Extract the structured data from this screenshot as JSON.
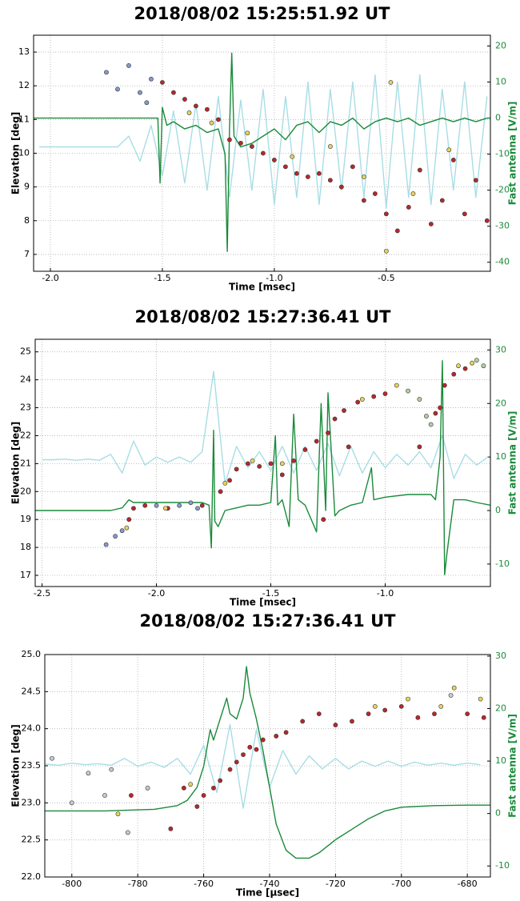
{
  "chart_data": [
    {
      "type": "combo",
      "title": "2018/08/02  15:25:51.92 UT",
      "x_label": "Time [msec]",
      "y_label": "Elevation [deg]",
      "y2_label": "Fast antenna [V/m]",
      "xlim": [
        -2.075,
        -0.035
      ],
      "ylim": [
        6.5,
        13.5
      ],
      "y2lim": [
        -42.5,
        23
      ],
      "grid": true,
      "xticks": [
        {
          "value": -2,
          "label": "-2.0"
        },
        -1.5,
        {
          "value": -1,
          "label": "-1.0"
        },
        -0.5
      ],
      "yticks": [
        7,
        8,
        9,
        10,
        11,
        12,
        13
      ],
      "y2ticks": [
        -40,
        -30,
        -20,
        -10,
        0,
        10,
        20
      ],
      "series": [
        {
          "kind": "line",
          "axis": "y2",
          "color": "#a8dde6",
          "x": [
            -2.05,
            -2.0,
            -1.95,
            -1.9,
            -1.85,
            -1.8,
            -1.75,
            -1.7,
            -1.65,
            -1.6,
            -1.55,
            -1.5,
            -1.45,
            -1.4,
            -1.35,
            -1.3,
            -1.25,
            -1.2,
            -1.15,
            -1.1,
            -1.05,
            -1.0,
            -0.95,
            -0.9,
            -0.85,
            -0.8,
            -0.75,
            -0.7,
            -0.65,
            -0.6,
            -0.55,
            -0.5,
            -0.45,
            -0.4,
            -0.35,
            -0.3,
            -0.25,
            -0.2,
            -0.15,
            -0.1,
            -0.05
          ],
          "values": [
            -8,
            -8,
            -8,
            -8,
            -8,
            -8,
            -8,
            -8,
            -5,
            -12,
            -2,
            -16,
            2,
            -18,
            4,
            -20,
            6,
            -22,
            5,
            -20,
            8,
            -24,
            6,
            -22,
            10,
            -24,
            8,
            -20,
            10,
            -22,
            12,
            -25,
            10,
            -22,
            12,
            -24,
            8,
            -20,
            10,
            -22,
            6
          ]
        },
        {
          "kind": "line",
          "axis": "y2",
          "color": "#1a8a3a",
          "x": [
            -2.075,
            -1.6,
            -1.52,
            -1.51,
            -1.5,
            -1.48,
            -1.45,
            -1.4,
            -1.35,
            -1.3,
            -1.25,
            -1.22,
            -1.21,
            -1.2,
            -1.19,
            -1.18,
            -1.17,
            -1.15,
            -1.1,
            -1.05,
            -1.0,
            -0.95,
            -0.9,
            -0.85,
            -0.8,
            -0.75,
            -0.7,
            -0.65,
            -0.6,
            -0.55,
            -0.5,
            -0.45,
            -0.4,
            -0.35,
            -0.3,
            -0.25,
            -0.2,
            -0.15,
            -0.1,
            -0.05,
            -0.035
          ],
          "values": [
            0,
            0,
            0,
            -18,
            3,
            -2,
            -1,
            -3,
            -2,
            -4,
            -3,
            -10,
            -37,
            -3,
            18,
            -5,
            -6,
            -8,
            -7,
            -5,
            -3,
            -6,
            -2,
            -1,
            -4,
            -1,
            -2,
            0,
            -3,
            -1,
            0,
            -1,
            0,
            -2,
            -1,
            0,
            -1,
            0,
            -1,
            0,
            0
          ]
        },
        {
          "kind": "scatter",
          "axis": "y",
          "color": "#8899cc",
          "x": [
            -1.75,
            -1.7,
            -1.65,
            -1.6,
            -1.57,
            -1.55
          ],
          "values": [
            12.4,
            11.9,
            12.6,
            11.8,
            11.5,
            12.2
          ]
        },
        {
          "kind": "scatter",
          "axis": "y",
          "color": "#b8282a",
          "x": [
            -1.5,
            -1.45,
            -1.4,
            -1.35,
            -1.3,
            -1.25,
            -1.2,
            -1.15,
            -1.1,
            -1.05,
            -1.0,
            -0.95,
            -0.9,
            -0.85,
            -0.8,
            -0.75,
            -0.7,
            -0.65,
            -0.6,
            -0.55,
            -0.5,
            -0.45,
            -0.4,
            -0.35,
            -0.3,
            -0.25,
            -0.2,
            -0.15,
            -0.1,
            -0.05
          ],
          "values": [
            12.1,
            11.8,
            11.6,
            11.4,
            11.3,
            11.0,
            10.4,
            10.3,
            10.2,
            10.0,
            9.8,
            9.6,
            9.4,
            9.3,
            9.4,
            9.2,
            9.0,
            9.6,
            8.6,
            8.8,
            8.2,
            7.7,
            8.4,
            9.5,
            7.9,
            8.6,
            9.8,
            8.2,
            9.2,
            8.0
          ]
        },
        {
          "kind": "scatter",
          "axis": "y",
          "color": "#e8d45a",
          "x": [
            -1.38,
            -1.28,
            -1.12,
            -0.92,
            -0.75,
            -0.6,
            -0.48,
            -0.38,
            -0.22,
            -0.5
          ],
          "values": [
            11.2,
            10.9,
            10.6,
            9.9,
            10.2,
            9.3,
            12.1,
            8.8,
            10.1,
            7.1
          ]
        }
      ]
    },
    {
      "type": "combo",
      "title": "2018/08/02  15:27:36.41 UT",
      "x_label": "Time [msec]",
      "y_label": "Elevation [deg]",
      "y2_label": "Fast antenna [V/m]",
      "xlim": [
        -2.53,
        -0.54
      ],
      "ylim": [
        16.6,
        25.45
      ],
      "y2lim": [
        -14.2,
        32
      ],
      "grid": true,
      "xticks": [
        -2.5,
        {
          "value": -2,
          "label": "-2.0"
        },
        -1.5,
        {
          "value": -1,
          "label": "-1.0"
        }
      ],
      "yticks": [
        17,
        18,
        19,
        20,
        21,
        22,
        23,
        24,
        25
      ],
      "y2ticks": [
        -10,
        0,
        10,
        20,
        30
      ],
      "series": [
        {
          "kind": "line",
          "axis": "y2",
          "color": "#a8dde6",
          "x": [
            -2.5,
            -2.45,
            -2.4,
            -2.35,
            -2.3,
            -2.25,
            -2.2,
            -2.15,
            -2.1,
            -2.05,
            -2.0,
            -1.95,
            -1.9,
            -1.85,
            -1.8,
            -1.75,
            -1.7,
            -1.65,
            -1.6,
            -1.55,
            -1.5,
            -1.45,
            -1.4,
            -1.35,
            -1.3,
            -1.25,
            -1.2,
            -1.15,
            -1.1,
            -1.05,
            -1.0,
            -0.95,
            -0.9,
            -0.85,
            -0.8,
            -0.75,
            -0.7,
            -0.65,
            -0.6,
            -0.55
          ],
          "values": [
            9.5,
            9.5,
            9.6,
            9.4,
            9.6,
            9.4,
            10.5,
            7,
            13,
            8.5,
            10,
            9,
            10,
            9,
            11,
            26,
            5,
            12,
            8,
            11,
            7.5,
            12,
            7,
            12,
            7.5,
            12.5,
            6.5,
            12,
            7,
            11,
            8,
            10.5,
            8.5,
            11,
            8,
            14,
            6,
            10.5,
            8.5,
            10
          ]
        },
        {
          "kind": "line",
          "axis": "y2",
          "color": "#1a8a3a",
          "x": [
            -2.53,
            -2.2,
            -2.15,
            -2.12,
            -2.1,
            -2.0,
            -1.9,
            -1.8,
            -1.77,
            -1.76,
            -1.75,
            -1.745,
            -1.73,
            -1.7,
            -1.65,
            -1.6,
            -1.55,
            -1.5,
            -1.48,
            -1.47,
            -1.45,
            -1.42,
            -1.4,
            -1.38,
            -1.35,
            -1.32,
            -1.3,
            -1.28,
            -1.26,
            -1.25,
            -1.22,
            -1.2,
            -1.15,
            -1.1,
            -1.06,
            -1.05,
            -1.0,
            -0.9,
            -0.8,
            -0.78,
            -0.76,
            -0.75,
            -0.74,
            -0.73,
            -0.7,
            -0.65,
            -0.6,
            -0.54
          ],
          "values": [
            0,
            0,
            0.5,
            2,
            1.5,
            1.5,
            1.5,
            1.5,
            1,
            -7,
            15,
            -2,
            -3,
            0,
            0.5,
            1,
            1,
            1.5,
            14,
            1,
            2,
            -3,
            18,
            2,
            1,
            -2,
            -4,
            20,
            0,
            22,
            -1,
            0,
            1,
            1.5,
            8,
            2,
            2.5,
            3,
            3,
            2,
            10,
            28,
            -12,
            -8,
            2,
            2,
            1.5,
            1
          ]
        },
        {
          "kind": "scatter",
          "axis": "y",
          "color": "#8899cc",
          "x": [
            -2.22,
            -2.18,
            -2.15,
            -2.0,
            -1.9,
            -1.85,
            -1.82
          ],
          "values": [
            18.1,
            18.4,
            18.6,
            19.5,
            19.5,
            19.6,
            19.4
          ]
        },
        {
          "kind": "scatter",
          "axis": "y",
          "color": "#b8282a",
          "x": [
            -2.12,
            -2.1,
            -2.05,
            -1.95,
            -1.8,
            -1.72,
            -1.68,
            -1.65,
            -1.6,
            -1.55,
            -1.5,
            -1.45,
            -1.4,
            -1.35,
            -1.3,
            -1.25,
            -1.22,
            -1.18,
            -1.12,
            -1.05,
            -1.0,
            -0.78,
            -0.76,
            -0.74,
            -0.7,
            -0.65,
            -1.27,
            -1.16,
            -0.85
          ],
          "values": [
            19.0,
            19.4,
            19.5,
            19.4,
            19.5,
            20.0,
            20.4,
            20.8,
            21.0,
            20.9,
            21.0,
            20.6,
            21.1,
            21.5,
            21.8,
            22.1,
            22.6,
            22.9,
            23.2,
            23.4,
            23.5,
            22.8,
            23.0,
            23.8,
            24.2,
            24.4,
            19.0,
            21.6,
            21.6
          ]
        },
        {
          "kind": "scatter",
          "axis": "y",
          "color": "#e8d45a",
          "x": [
            -2.13,
            -1.96,
            -1.7,
            -1.58,
            -1.45,
            -1.1,
            -0.95,
            -0.68,
            -0.62
          ],
          "values": [
            18.7,
            19.4,
            20.3,
            21.1,
            21.0,
            23.3,
            23.8,
            24.5,
            24.6
          ]
        },
        {
          "kind": "scatter",
          "axis": "y",
          "color": "#b5cfa0",
          "x": [
            -0.9,
            -0.85,
            -0.82,
            -0.8,
            -0.6,
            -0.57
          ],
          "values": [
            23.6,
            23.3,
            22.7,
            22.4,
            24.7,
            24.5
          ]
        }
      ]
    },
    {
      "type": "combo",
      "title": "2018/08/02  15:27:36.41 UT",
      "x_label": "Time [μsec]",
      "y_label": "Elevation [deg]",
      "y2_label": "Fast antenna [V/m]",
      "xlim": [
        -808.2,
        -673
      ],
      "ylim": [
        22,
        25
      ],
      "y2lim": [
        -12.1,
        30.3
      ],
      "grid": true,
      "xticks": [
        -800,
        -780,
        -760,
        -740,
        -720,
        -700,
        -680
      ],
      "yticks": [
        {
          "value": 22,
          "label": "22.0"
        },
        22.5,
        {
          "value": 23,
          "label": "23.0"
        },
        23.5,
        {
          "value": 24,
          "label": "24.0"
        },
        24.5,
        {
          "value": 25,
          "label": "25.0"
        }
      ],
      "y2ticks": [
        -10,
        0,
        10,
        20,
        30
      ],
      "series": [
        {
          "kind": "line",
          "axis": "y2",
          "color": "#a8dde6",
          "x": [
            -808,
            -804,
            -800,
            -796,
            -792,
            -788,
            -784,
            -780,
            -776,
            -772,
            -768,
            -764,
            -760,
            -756,
            -752,
            -748,
            -744,
            -740,
            -736,
            -732,
            -728,
            -724,
            -720,
            -716,
            -712,
            -708,
            -704,
            -700,
            -696,
            -692,
            -688,
            -684,
            -680,
            -676
          ],
          "values": [
            9.4,
            9.2,
            9.6,
            9.3,
            9.5,
            9.2,
            10.5,
            9.0,
            9.8,
            8.8,
            10.5,
            7.5,
            13,
            4,
            17,
            1,
            16,
            5,
            12,
            7.5,
            11,
            8.5,
            10.5,
            8.5,
            10,
            9,
            10,
            9,
            9.8,
            9.2,
            9.6,
            9.2,
            9.6,
            9.3
          ]
        },
        {
          "kind": "line",
          "axis": "y2",
          "color": "#1a8a3a",
          "x": [
            -808.2,
            -790,
            -775,
            -768,
            -765,
            -762,
            -760,
            -758,
            -757,
            -755,
            -753,
            -752,
            -750,
            -748,
            -747,
            -746,
            -744,
            -742,
            -740,
            -738,
            -735,
            -732,
            -728,
            -725,
            -720,
            -715,
            -710,
            -705,
            -700,
            -690,
            -680,
            -673
          ],
          "values": [
            0.5,
            0.5,
            0.8,
            1.5,
            2.5,
            5,
            9,
            16,
            14,
            18,
            22,
            19,
            18,
            22,
            28,
            23,
            18,
            12,
            5,
            -2,
            -7,
            -8.5,
            -8.5,
            -7.5,
            -5,
            -3,
            -1,
            0.5,
            1.2,
            1.5,
            1.6,
            1.6
          ]
        },
        {
          "kind": "scatter",
          "axis": "y",
          "color": "#c8cbd8",
          "x": [
            -806,
            -800,
            -795,
            -790,
            -788,
            -777,
            -783,
            -685
          ],
          "values": [
            23.6,
            23.0,
            23.4,
            23.1,
            23.45,
            23.2,
            22.6,
            24.45
          ]
        },
        {
          "kind": "scatter",
          "axis": "y",
          "color": "#b8282a",
          "x": [
            -770,
            -762,
            -760,
            -757,
            -755,
            -752,
            -750,
            -748,
            -746,
            -744,
            -742,
            -738,
            -735,
            -730,
            -725,
            -720,
            -715,
            -710,
            -705,
            -700,
            -695,
            -690,
            -680,
            -675,
            -782,
            -766
          ],
          "values": [
            22.65,
            22.95,
            23.1,
            23.2,
            23.3,
            23.45,
            23.55,
            23.65,
            23.75,
            23.72,
            23.85,
            23.9,
            23.95,
            24.1,
            24.2,
            24.05,
            24.1,
            24.2,
            24.25,
            24.3,
            24.15,
            24.2,
            24.2,
            24.15,
            23.1,
            23.2
          ]
        },
        {
          "kind": "scatter",
          "axis": "y",
          "color": "#e8d45a",
          "x": [
            -786,
            -764,
            -708,
            -698,
            -688,
            -684,
            -676
          ],
          "values": [
            22.85,
            23.25,
            24.3,
            24.4,
            24.3,
            24.55,
            24.4
          ]
        }
      ]
    }
  ]
}
